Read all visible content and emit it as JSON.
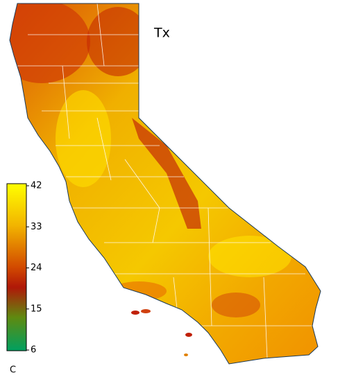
{
  "title": "Tx",
  "colorbar": {
    "range": [
      6,
      42
    ],
    "ticks": [
      42,
      33,
      24,
      15,
      6
    ],
    "unit": "C"
  }
}
